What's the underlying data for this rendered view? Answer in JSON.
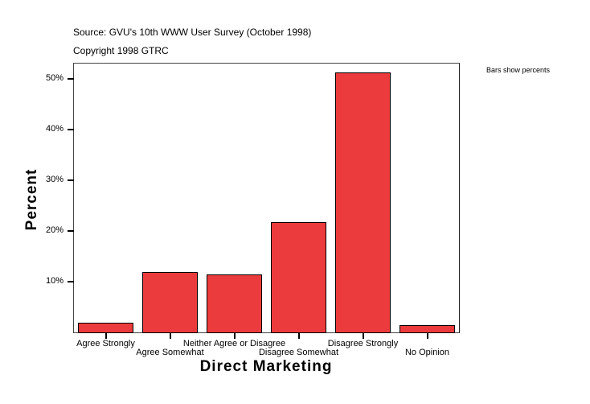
{
  "header": {
    "source": "Source: GVU's 10th WWW User Survey (October 1998)",
    "copyright": "Copyright 1998 GTRC"
  },
  "legend_note": "Bars show percents",
  "axes": {
    "y_title": "Percent",
    "x_title": "Direct Marketing",
    "y_ticks": [
      "50%",
      "40%",
      "30%",
      "20%",
      "10%"
    ],
    "x_ticks": [
      "Agree Strongly",
      "Agree Somewhat",
      "Neither Agree or Disagree",
      "Disagree Somewhat",
      "Disagree Strongly",
      "No Opinion"
    ]
  },
  "colors": {
    "bar_fill": "#ec3b3c",
    "bar_border": "#000000",
    "frame": "#444444"
  },
  "chart_data": {
    "type": "bar",
    "title": "Source: GVU's 10th WWW User Survey (October 1998)",
    "subtitle": "Copyright 1998 GTRC",
    "xlabel": "Direct Marketing",
    "ylabel": "Percent",
    "categories": [
      "Agree Strongly",
      "Agree Somewhat",
      "Neither Agree or Disagree",
      "Disagree Somewhat",
      "Disagree Strongly",
      "No Opinion"
    ],
    "values": [
      1.9,
      11.9,
      11.4,
      21.8,
      51.3,
      1.4
    ],
    "unit": "%",
    "ylim": [
      0,
      53.3
    ],
    "y_tick_values": [
      10,
      20,
      30,
      40,
      50
    ],
    "grid": false,
    "annotations": [
      "Bars show percents"
    ],
    "legend_position": "none"
  }
}
